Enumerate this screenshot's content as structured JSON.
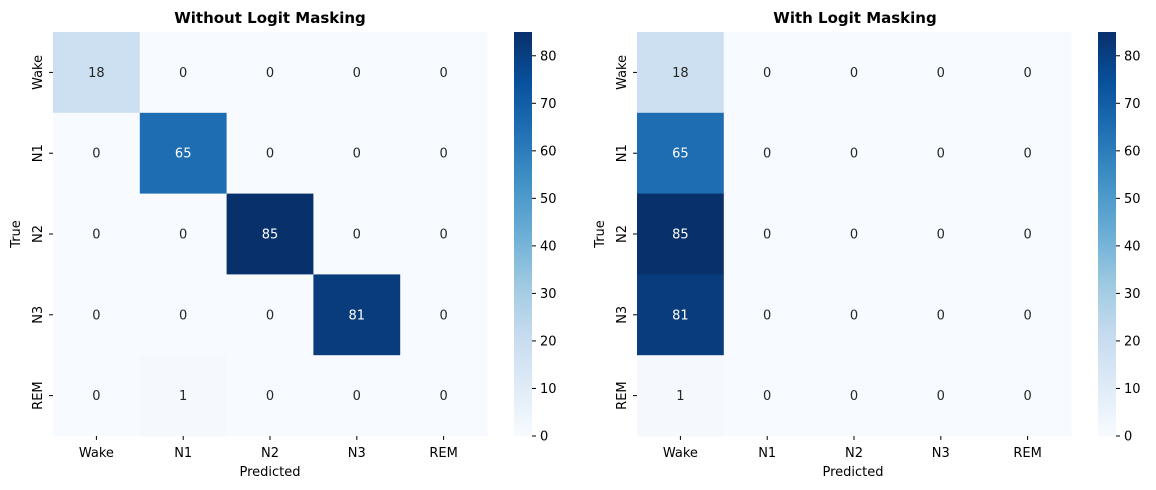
{
  "chart_data": [
    {
      "type": "heatmap",
      "title": "Without Logit Masking",
      "xlabel": "Predicted",
      "ylabel": "True",
      "x_categories": [
        "Wake",
        "N1",
        "N2",
        "N3",
        "REM"
      ],
      "y_categories": [
        "Wake",
        "N1",
        "N2",
        "N3",
        "REM"
      ],
      "values": [
        [
          18,
          0,
          0,
          0,
          0
        ],
        [
          0,
          65,
          0,
          0,
          0
        ],
        [
          0,
          0,
          85,
          0,
          0
        ],
        [
          0,
          0,
          0,
          81,
          0
        ],
        [
          0,
          1,
          0,
          0,
          0
        ]
      ],
      "colormap": "Blues",
      "vmin": 0,
      "vmax": 85,
      "colorbar_ticks": [
        0,
        10,
        20,
        30,
        40,
        50,
        60,
        70,
        80
      ],
      "annotations": true
    },
    {
      "type": "heatmap",
      "title": "With Logit Masking",
      "xlabel": "Predicted",
      "ylabel": "True",
      "x_categories": [
        "Wake",
        "N1",
        "N2",
        "N3",
        "REM"
      ],
      "y_categories": [
        "Wake",
        "N1",
        "N2",
        "N3",
        "REM"
      ],
      "values": [
        [
          18,
          0,
          0,
          0,
          0
        ],
        [
          65,
          0,
          0,
          0,
          0
        ],
        [
          85,
          0,
          0,
          0,
          0
        ],
        [
          81,
          0,
          0,
          0,
          0
        ],
        [
          1,
          0,
          0,
          0,
          0
        ]
      ],
      "colormap": "Blues",
      "vmin": 0,
      "vmax": 85,
      "colorbar_ticks": [
        0,
        10,
        20,
        30,
        40,
        50,
        60,
        70,
        80
      ],
      "annotations": true
    }
  ]
}
